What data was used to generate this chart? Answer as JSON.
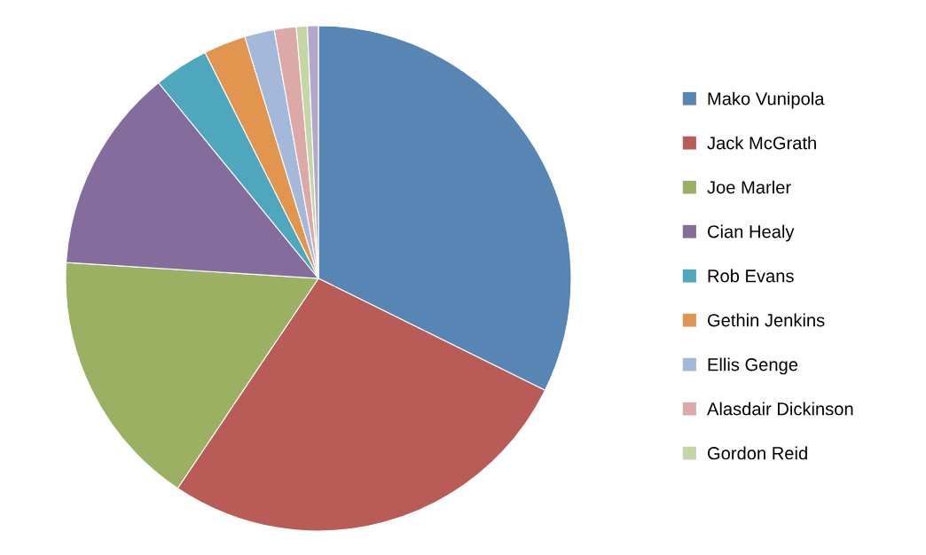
{
  "chart_data": {
    "type": "pie",
    "categories": [
      "Mako Vunipola",
      "Jack McGrath",
      "Joe Marler",
      "Cian Healy",
      "Rob Evans",
      "Gethin Jenkins",
      "Ellis Genge",
      "Alasdair Dickinson",
      "Gordon Reid",
      null
    ],
    "values": [
      32.3,
      27.1,
      16.6,
      13.1,
      3.5,
      2.7,
      1.9,
      1.4,
      0.7,
      0.7
    ],
    "colors": [
      "#5886b4",
      "#b95b56",
      "#9bb062",
      "#846c9c",
      "#4ea7bd",
      "#e2954f",
      "#a4b8d9",
      "#dca8a8",
      "#c5d6a5",
      "#b3a8cc"
    ],
    "legend": "right"
  }
}
